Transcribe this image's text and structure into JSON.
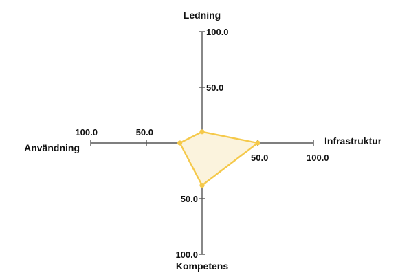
{
  "chart_data": {
    "type": "radar",
    "axes": [
      {
        "name": "Ledning",
        "direction": "up",
        "tick_labels": [
          "50.0",
          "100.0"
        ]
      },
      {
        "name": "Infrastruktur",
        "direction": "right",
        "tick_labels": [
          "50.0",
          "100.0"
        ]
      },
      {
        "name": "Kompetens",
        "direction": "down",
        "tick_labels": [
          "50.0",
          "100.0"
        ]
      },
      {
        "name": "Användning",
        "direction": "left",
        "tick_labels": [
          "50.0",
          "100.0"
        ]
      }
    ],
    "range": [
      0,
      100
    ],
    "ticks": [
      50,
      100
    ],
    "series": [
      {
        "values": {
          "Ledning": 10,
          "Infrastruktur": 50,
          "Kompetens": 38,
          "Användning": 20
        },
        "line_color": "#f5c94a",
        "fill_color": "#fbf3dd"
      }
    ],
    "grid": false,
    "legend": "none"
  }
}
